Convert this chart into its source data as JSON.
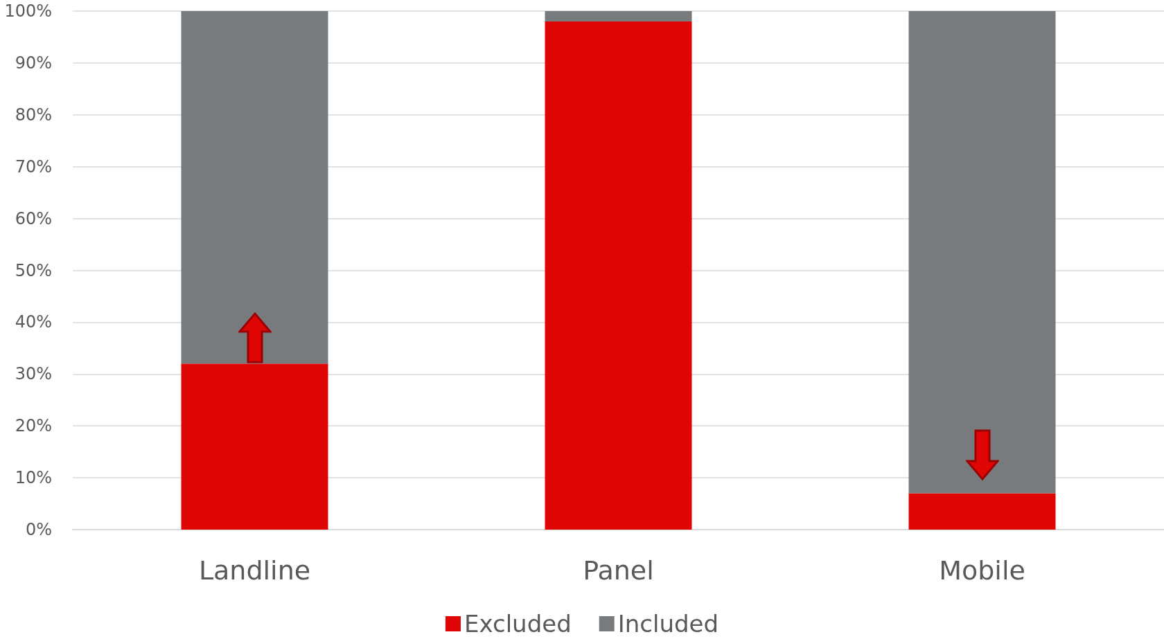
{
  "chart_data": {
    "type": "bar",
    "stacked": true,
    "categories": [
      "Landline",
      "Panel",
      "Mobile"
    ],
    "series": [
      {
        "name": "Excluded",
        "color": "#e00606",
        "values": [
          32,
          98,
          7
        ]
      },
      {
        "name": "Included",
        "color": "#787b7e",
        "values": [
          68,
          2,
          93
        ]
      }
    ],
    "ylim": [
      0,
      100
    ],
    "yticks": [
      {
        "value": 0,
        "label": "0%"
      },
      {
        "value": 10,
        "label": "10%"
      },
      {
        "value": 20,
        "label": "20%"
      },
      {
        "value": 30,
        "label": "30%"
      },
      {
        "value": 40,
        "label": "40%"
      },
      {
        "value": 50,
        "label": "50%"
      },
      {
        "value": 60,
        "label": "60%"
      },
      {
        "value": 70,
        "label": "70%"
      },
      {
        "value": 80,
        "label": "80%"
      },
      {
        "value": 90,
        "label": "90%"
      },
      {
        "value": 100,
        "label": "100%"
      }
    ],
    "grid": "y",
    "legend": "bottom"
  }
}
